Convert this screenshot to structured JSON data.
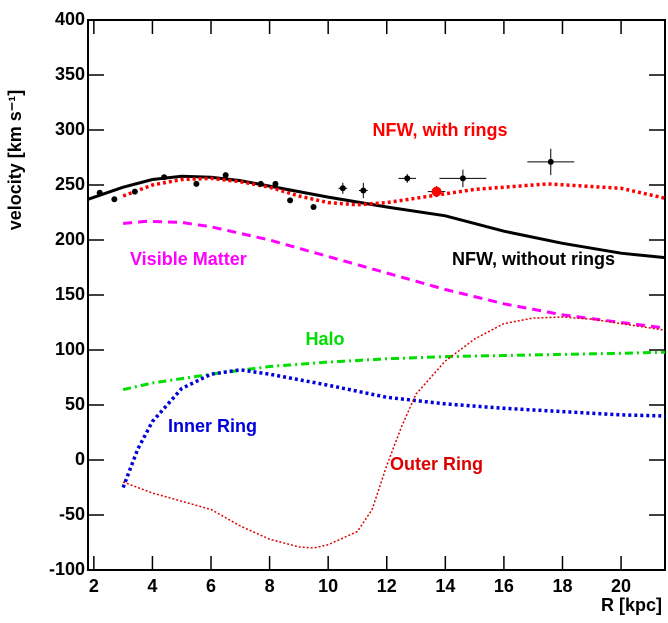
{
  "chart_data": {
    "type": "line",
    "x_label": "R [kpc]",
    "y_label": "velocity [km s⁻¹]",
    "xlim": [
      1.8,
      21.5
    ],
    "xticks": [
      2,
      4,
      6,
      8,
      10,
      12,
      14,
      16,
      18,
      20
    ],
    "ylim": [
      -100,
      400
    ],
    "yticks": [
      -100,
      -50,
      0,
      50,
      100,
      150,
      200,
      250,
      300,
      350,
      400
    ],
    "series": [
      {
        "name": "NFW, without rings",
        "color": "#000000",
        "dash": "solid",
        "x": [
          1.8,
          3,
          4,
          5,
          6,
          7,
          8,
          10,
          12,
          14,
          16,
          18,
          20,
          21.5
        ],
        "values": [
          237,
          248,
          255,
          258,
          257,
          254,
          249,
          239,
          230,
          222,
          208,
          197,
          188,
          184
        ]
      },
      {
        "name": "NFW, with rings",
        "color": "#ff0000",
        "dash": "dotted-thick",
        "x": [
          3,
          4,
          5,
          6,
          7,
          8,
          9,
          10,
          11,
          12,
          13,
          15,
          17.5,
          20,
          21.5
        ],
        "values": [
          240,
          250,
          255,
          256,
          253,
          248,
          240,
          234,
          232,
          234,
          238,
          246,
          251,
          247,
          238
        ]
      },
      {
        "name": "Visible Matter",
        "color": "#ff00ff",
        "dash": "dashed",
        "x": [
          3,
          3.8,
          5,
          6,
          8,
          10,
          12,
          14,
          16,
          18,
          20,
          21.5
        ],
        "values": [
          215,
          217,
          216,
          212,
          200,
          185,
          170,
          155,
          142,
          132,
          125,
          120
        ]
      },
      {
        "name": "Halo",
        "color": "#00dd00",
        "dash": "dashdot",
        "x": [
          3,
          4,
          6,
          8,
          10,
          12,
          14,
          16,
          18,
          20,
          21.5
        ],
        "values": [
          64,
          70,
          78,
          85,
          89,
          92,
          94,
          95,
          96,
          97,
          98
        ]
      },
      {
        "name": "Inner Ring",
        "color": "#0000dd",
        "dash": "dotted-thick",
        "x": [
          3,
          3.5,
          4,
          5,
          6,
          7,
          8,
          10,
          12,
          14,
          16,
          18,
          20,
          21.5
        ],
        "values": [
          -25,
          10,
          35,
          65,
          78,
          82,
          78,
          68,
          57,
          51,
          47,
          44,
          41,
          40
        ]
      },
      {
        "name": "Outer Ring",
        "color": "#dd0000",
        "dash": "dotted-thin",
        "x": [
          3,
          4,
          6,
          7,
          8,
          9,
          9.5,
          10,
          11,
          11.5,
          12,
          12.5,
          13,
          14,
          15,
          16,
          17,
          18,
          19,
          20,
          21.5
        ],
        "values": [
          -20,
          -30,
          -45,
          -60,
          -72,
          -79,
          -80,
          -77,
          -65,
          -45,
          -5,
          30,
          60,
          90,
          110,
          124,
          129,
          130,
          128,
          124,
          118
        ]
      },
      {
        "type": "scatter",
        "color": "#000000",
        "x": [
          2.2,
          2.7,
          3.4,
          4.4,
          5.5,
          6.5,
          7.7,
          8.2,
          8.7,
          9.5,
          10.5,
          11.2,
          12.7,
          14.6,
          17.6
        ],
        "values": [
          243,
          237,
          244,
          257,
          251,
          259,
          251,
          251,
          236,
          230,
          247,
          245,
          256,
          256,
          271
        ],
        "xerr": [
          null,
          null,
          null,
          null,
          null,
          null,
          null,
          null,
          null,
          null,
          0.15,
          0.15,
          0.3,
          0.8,
          0.8
        ],
        "yerr": [
          null,
          null,
          null,
          null,
          null,
          null,
          null,
          null,
          null,
          null,
          5,
          7,
          4,
          8,
          12
        ]
      },
      {
        "type": "scatter",
        "color": "#ff0000",
        "x": [
          13.7
        ],
        "values": [
          244
        ],
        "xerr": [
          0.3
        ],
        "yerr": [
          5
        ]
      }
    ]
  }
}
